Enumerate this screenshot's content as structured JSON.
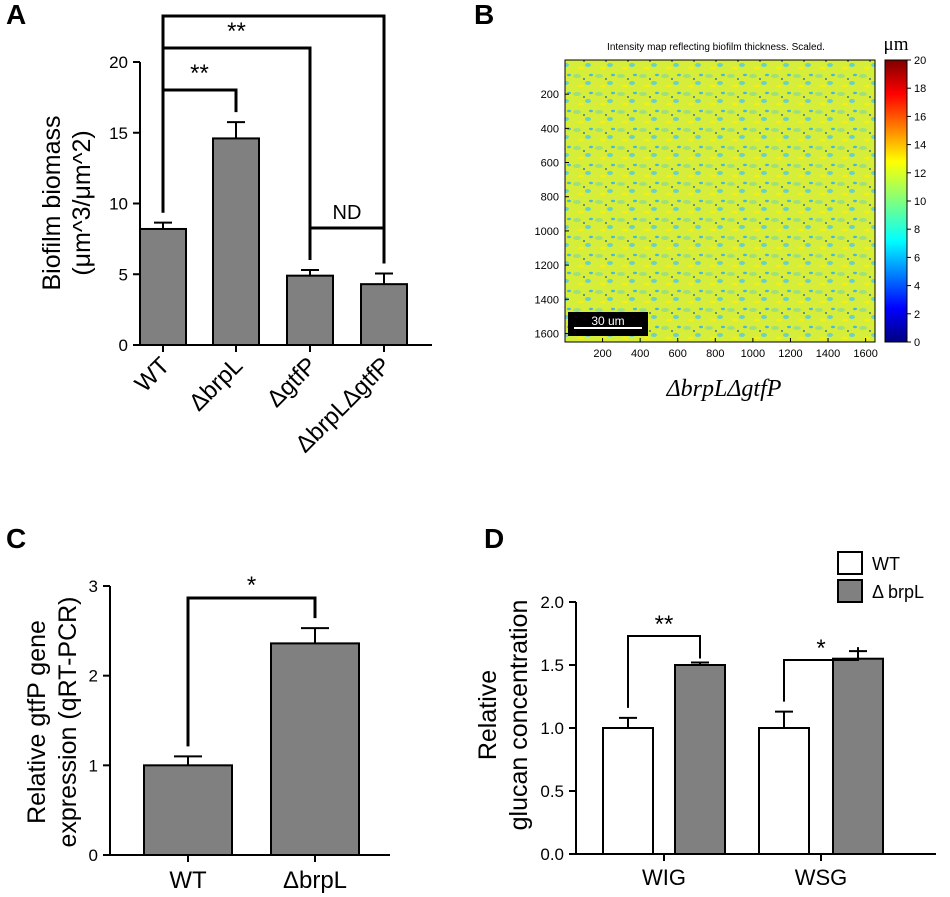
{
  "panels": {
    "A": {
      "label": "A",
      "ylabel_line1": "Biofilm biomass",
      "ylabel_line2": "(μm^3/μm^2)",
      "significance": [
        {
          "from": 0,
          "to": 1,
          "label": "**"
        },
        {
          "from": 0,
          "to": 2,
          "label": "**"
        },
        {
          "from": 0,
          "to": 3,
          "label": "**"
        },
        {
          "from": 2,
          "to": 3,
          "label": "ND"
        }
      ]
    },
    "B": {
      "label": "B",
      "title": "Intensity map reflecting biofilm thickness. Scaled.",
      "x_ticks": [
        "200",
        "400",
        "600",
        "800",
        "1000",
        "1200",
        "1400",
        "1600"
      ],
      "y_ticks": [
        "200",
        "400",
        "600",
        "800",
        "1000",
        "1200",
        "1400",
        "1600"
      ],
      "colorbar_ticks": [
        "0",
        "2",
        "4",
        "6",
        "8",
        "10",
        "12",
        "14",
        "16",
        "18",
        "20"
      ],
      "colorbar_unit": "μm",
      "scale_bar": "30 um",
      "caption": "ΔbrpLΔgtfP"
    },
    "C": {
      "label": "C",
      "ylabel_line1": "Relative gtfP gene",
      "ylabel_line2": "expression (qRT-PCR)",
      "significance": {
        "from": 0,
        "to": 1,
        "label": "*"
      }
    },
    "D": {
      "label": "D",
      "ylabel_line1": "Relative",
      "ylabel_line2": "glucan concentration",
      "significance": [
        {
          "group": 0,
          "label": "**"
        },
        {
          "group": 1,
          "label": "*"
        }
      ],
      "colors": {
        "WT": "#ffffff",
        "ΔbrpL": "#808080"
      }
    }
  },
  "chart_data": [
    {
      "panel": "A",
      "type": "bar",
      "categories": [
        "WT",
        "ΔbrpL",
        "ΔgtfP",
        "ΔbrpLΔgtfP"
      ],
      "values": [
        8.2,
        14.6,
        4.9,
        4.3
      ],
      "errors": [
        0.45,
        1.15,
        0.4,
        0.75
      ],
      "ylabel": "Biofilm biomass (μm^3/μm^2)",
      "ylim": [
        0,
        20
      ],
      "yticks": [
        0,
        5,
        10,
        15,
        20
      ],
      "bar_color": "#808080"
    },
    {
      "panel": "B",
      "type": "heatmap",
      "title": "Intensity map reflecting biofilm thickness. Scaled.",
      "xlim": [
        0,
        1650
      ],
      "ylim": [
        0,
        1650
      ],
      "colorbar_range": [
        0,
        20
      ],
      "colorbar_label": "μm",
      "predominant_value": 11,
      "caption": "ΔbrpLΔgtfP"
    },
    {
      "panel": "C",
      "type": "bar",
      "categories": [
        "WT",
        "ΔbrpL"
      ],
      "values": [
        1.0,
        2.36
      ],
      "errors": [
        0.1,
        0.17
      ],
      "ylabel": "Relative gtfP gene expression (qRT-PCR)",
      "ylim": [
        0,
        3
      ],
      "yticks": [
        0,
        1,
        2,
        3
      ],
      "bar_color": "#808080"
    },
    {
      "panel": "D",
      "type": "bar",
      "categories": [
        "WIG",
        "WSG"
      ],
      "series": [
        {
          "name": "WT",
          "values": [
            1.0,
            1.0
          ],
          "errors": [
            0.08,
            0.13
          ]
        },
        {
          "name": "ΔbrpL",
          "values": [
            1.5,
            1.55
          ],
          "errors": [
            0.02,
            0.06
          ]
        }
      ],
      "legend_labels": [
        "WT",
        "Δ brpL"
      ],
      "ylabel": "Relative glucan concentration",
      "ylim": [
        0,
        2.0
      ],
      "yticks": [
        "0.0",
        "0.5",
        "1.0",
        "1.5",
        "2.0"
      ],
      "legend": "top-right"
    }
  ]
}
